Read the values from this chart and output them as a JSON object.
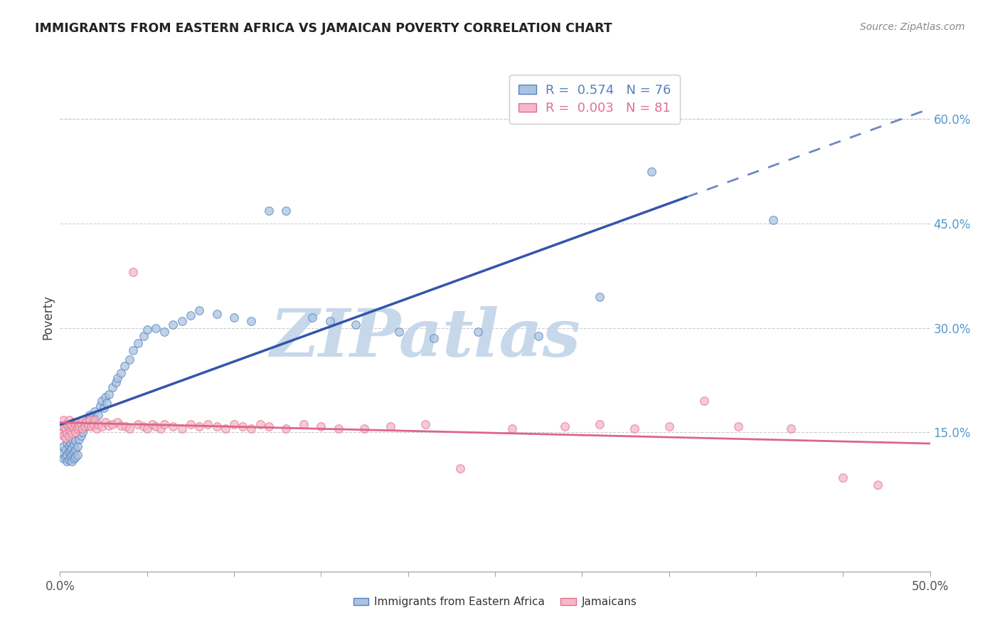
{
  "title": "IMMIGRANTS FROM EASTERN AFRICA VS JAMAICAN POVERTY CORRELATION CHART",
  "source": "Source: ZipAtlas.com",
  "ylabel": "Poverty",
  "xlim": [
    0.0,
    0.5
  ],
  "ylim": [
    -0.05,
    0.68
  ],
  "xticks": [
    0.0,
    0.05,
    0.1,
    0.15,
    0.2,
    0.25,
    0.3,
    0.35,
    0.4,
    0.45,
    0.5
  ],
  "ytick_right_labels": [
    "15.0%",
    "30.0%",
    "45.0%",
    "60.0%"
  ],
  "ytick_right_vals": [
    0.15,
    0.3,
    0.45,
    0.6
  ],
  "ytick_grid_vals": [
    0.15,
    0.3,
    0.45,
    0.6
  ],
  "series1_label": "Immigrants from Eastern Africa",
  "series1_R": "0.574",
  "series1_N": "76",
  "series1_color": "#aac4e0",
  "series1_edge_color": "#5580c0",
  "series2_label": "Jamaicans",
  "series2_R": "0.003",
  "series2_N": "81",
  "series2_color": "#f4b8c8",
  "series2_edge_color": "#e07090",
  "trend1_color": "#3355aa",
  "trend1_solid_end": 0.36,
  "trend2_color": "#dd6688",
  "watermark": "ZIPatlas",
  "watermark_color_zip": "#c0d4e8",
  "watermark_color_atlas": "#b8cce0",
  "background_color": "#ffffff",
  "grid_color": "#cccccc",
  "title_color": "#222222",
  "series1_x": [
    0.001,
    0.002,
    0.002,
    0.003,
    0.003,
    0.004,
    0.004,
    0.004,
    0.005,
    0.005,
    0.005,
    0.006,
    0.006,
    0.006,
    0.007,
    0.007,
    0.007,
    0.007,
    0.008,
    0.008,
    0.008,
    0.009,
    0.009,
    0.009,
    0.01,
    0.01,
    0.011,
    0.011,
    0.012,
    0.012,
    0.013,
    0.014,
    0.015,
    0.016,
    0.017,
    0.018,
    0.019,
    0.02,
    0.022,
    0.023,
    0.024,
    0.025,
    0.026,
    0.027,
    0.028,
    0.03,
    0.032,
    0.033,
    0.035,
    0.037,
    0.04,
    0.042,
    0.045,
    0.048,
    0.05,
    0.055,
    0.06,
    0.065,
    0.07,
    0.075,
    0.08,
    0.09,
    0.1,
    0.11,
    0.12,
    0.13,
    0.145,
    0.155,
    0.17,
    0.195,
    0.215,
    0.24,
    0.275,
    0.31,
    0.34,
    0.41
  ],
  "series1_y": [
    0.12,
    0.112,
    0.13,
    0.115,
    0.125,
    0.108,
    0.118,
    0.135,
    0.11,
    0.122,
    0.13,
    0.115,
    0.125,
    0.135,
    0.108,
    0.118,
    0.128,
    0.14,
    0.112,
    0.122,
    0.132,
    0.115,
    0.125,
    0.138,
    0.118,
    0.13,
    0.14,
    0.155,
    0.145,
    0.16,
    0.15,
    0.165,
    0.158,
    0.168,
    0.175,
    0.162,
    0.172,
    0.18,
    0.175,
    0.188,
    0.195,
    0.185,
    0.2,
    0.192,
    0.205,
    0.215,
    0.222,
    0.228,
    0.235,
    0.245,
    0.255,
    0.268,
    0.278,
    0.288,
    0.298,
    0.3,
    0.295,
    0.305,
    0.31,
    0.318,
    0.325,
    0.32,
    0.315,
    0.31,
    0.468,
    0.468,
    0.315,
    0.31,
    0.305,
    0.295,
    0.285,
    0.295,
    0.288,
    0.345,
    0.525,
    0.455
  ],
  "series2_x": [
    0.001,
    0.001,
    0.002,
    0.002,
    0.002,
    0.003,
    0.003,
    0.004,
    0.004,
    0.005,
    0.005,
    0.005,
    0.006,
    0.006,
    0.007,
    0.007,
    0.008,
    0.008,
    0.009,
    0.009,
    0.01,
    0.01,
    0.011,
    0.012,
    0.013,
    0.013,
    0.014,
    0.015,
    0.016,
    0.017,
    0.018,
    0.019,
    0.02,
    0.021,
    0.022,
    0.024,
    0.026,
    0.028,
    0.03,
    0.033,
    0.035,
    0.038,
    0.04,
    0.042,
    0.045,
    0.048,
    0.05,
    0.053,
    0.055,
    0.058,
    0.06,
    0.065,
    0.07,
    0.075,
    0.08,
    0.085,
    0.09,
    0.095,
    0.1,
    0.105,
    0.11,
    0.115,
    0.12,
    0.13,
    0.14,
    0.15,
    0.16,
    0.175,
    0.19,
    0.21,
    0.23,
    0.26,
    0.29,
    0.31,
    0.33,
    0.35,
    0.37,
    0.39,
    0.42,
    0.45,
    0.47
  ],
  "series2_y": [
    0.148,
    0.16,
    0.145,
    0.158,
    0.168,
    0.142,
    0.155,
    0.148,
    0.162,
    0.145,
    0.158,
    0.168,
    0.152,
    0.162,
    0.148,
    0.16,
    0.155,
    0.165,
    0.15,
    0.162,
    0.155,
    0.165,
    0.158,
    0.162,
    0.155,
    0.168,
    0.158,
    0.165,
    0.16,
    0.168,
    0.158,
    0.162,
    0.168,
    0.155,
    0.162,
    0.158,
    0.165,
    0.16,
    0.162,
    0.165,
    0.16,
    0.158,
    0.155,
    0.38,
    0.162,
    0.158,
    0.155,
    0.162,
    0.158,
    0.155,
    0.162,
    0.158,
    0.155,
    0.162,
    0.158,
    0.162,
    0.158,
    0.155,
    0.162,
    0.158,
    0.155,
    0.162,
    0.158,
    0.155,
    0.162,
    0.158,
    0.155,
    0.155,
    0.158,
    0.162,
    0.098,
    0.155,
    0.158,
    0.162,
    0.155,
    0.158,
    0.195,
    0.158,
    0.155,
    0.085,
    0.075
  ]
}
